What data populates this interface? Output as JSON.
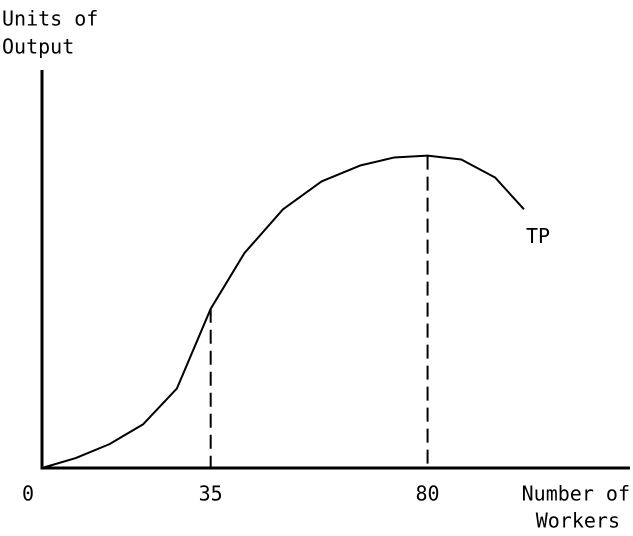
{
  "chart_data": {
    "type": "line",
    "x_label": [
      "Number of",
      "Workers"
    ],
    "y_label": [
      "Units of",
      "Output"
    ],
    "x": [
      0,
      7,
      14,
      21,
      28,
      35,
      42,
      50,
      58,
      66,
      73,
      80,
      87,
      94,
      100
    ],
    "series": [
      {
        "name": "TP",
        "color": "#000000",
        "values": [
          0,
          2.5,
          6,
          11,
          20,
          40,
          54,
          65,
          72,
          76,
          78,
          78.5,
          77.5,
          73,
          65
        ]
      }
    ],
    "xlim": [
      0,
      122
    ],
    "xticks": [
      0,
      35,
      80
    ],
    "ylim": [
      0,
      100
    ],
    "grid": false
  }
}
